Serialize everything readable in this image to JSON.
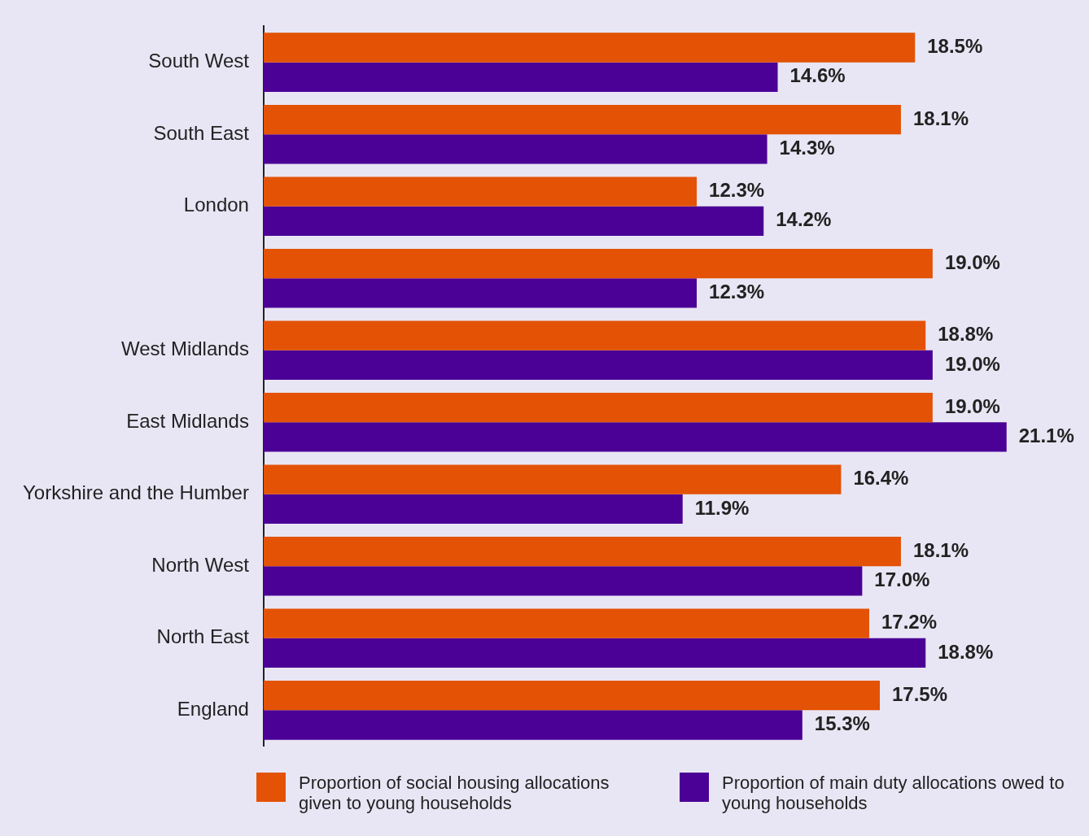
{
  "chart_data": {
    "type": "bar",
    "orientation": "horizontal",
    "categories": [
      "South West",
      "South East",
      "London",
      null,
      "West Midlands",
      "East Midlands",
      "Yorkshire and the Humber",
      "North West",
      "North East",
      "England"
    ],
    "series": [
      {
        "name": "Proportion of social housing allocations given to young households",
        "color": "#e35205",
        "values": [
          18.5,
          18.1,
          12.3,
          19.0,
          18.8,
          19.0,
          16.4,
          18.1,
          17.2,
          17.5
        ],
        "value_labels": [
          "18.5%",
          "18.1%",
          "12.3%",
          "19.0%",
          "18.8%",
          "19.0%",
          "16.4%",
          "18.1%",
          "17.2%",
          "17.5%"
        ]
      },
      {
        "name": "Proportion of main duty allocations owed to young households",
        "color": "#4b0096",
        "values": [
          14.6,
          14.3,
          14.2,
          12.3,
          19.0,
          21.1,
          11.9,
          17.0,
          18.8,
          15.3
        ],
        "value_labels": [
          "14.6%",
          "14.3%",
          "14.2%",
          "12.3%",
          "19.0%",
          "21.1%",
          "11.9%",
          "17.0%",
          "18.8%",
          "15.3%"
        ]
      }
    ],
    "tick_labels": "y",
    "legend": "bottom"
  }
}
